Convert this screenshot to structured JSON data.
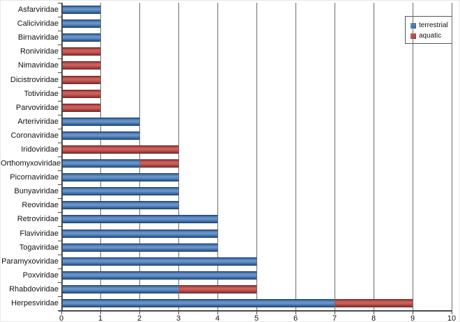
{
  "chart_data": {
    "type": "bar",
    "orientation": "horizontal",
    "stacked": true,
    "title": "",
    "xlabel": "",
    "ylabel": "",
    "xlim": [
      0,
      10
    ],
    "xticks": [
      0,
      1,
      2,
      3,
      4,
      5,
      6,
      7,
      8,
      9,
      10
    ],
    "grid": "vertical",
    "legend_position": "top-right",
    "categories_top_to_bottom": [
      "Asfarviridae",
      "Caliciviridae",
      "Birnaviridae",
      "Roniviridae",
      "Nimaviridae",
      "Dicistroviridae",
      "Totiviridae",
      "Parvoviridae",
      "Arteriviridae",
      "Coronaviridae",
      "Iridoviridae",
      "Orthomyxoviridae",
      "Picornaviridae",
      "Bunyaviridae",
      "Reoviridae",
      "Retroviridae",
      "Flaviviridae",
      "Togaviridae",
      "Paramyxoviridae",
      "Poxviridae",
      "Rhabdoviridae",
      "Herpesviridae"
    ],
    "series": [
      {
        "name": "terrestrial",
        "color": "#4F81BD",
        "values": [
          1,
          1,
          1,
          0,
          0,
          0,
          0,
          0,
          2,
          2,
          0,
          2,
          3,
          3,
          3,
          4,
          4,
          4,
          5,
          5,
          3,
          7
        ]
      },
      {
        "name": "aquatic",
        "color": "#C0504D",
        "values": [
          0,
          0,
          0,
          1,
          1,
          1,
          1,
          1,
          0,
          0,
          3,
          1,
          0,
          0,
          0,
          0,
          0,
          0,
          0,
          0,
          2,
          2
        ]
      }
    ]
  },
  "colors": {
    "gridline": "#6b6b6b",
    "axis": "#4a4a4a",
    "background": "#ffffff",
    "text": "#111111"
  }
}
